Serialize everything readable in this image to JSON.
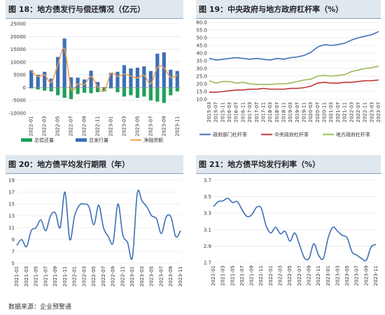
{
  "source": "数据来源：企业预警通",
  "charts": [
    {
      "type": "bar",
      "title": "图 18：地方债发行与偿还情况（亿元）",
      "y_ticks": [
        25000,
        20000,
        15000,
        10000,
        5000,
        0,
        -5000,
        -10000
      ],
      "ylim": [
        -10000,
        25000
      ],
      "x_ticks": [
        "2022-01",
        "2022-03",
        "2022-05",
        "2022-07",
        "2022-09",
        "2022-11",
        "2023-01",
        "2023-03",
        "2023-05",
        "2023-07",
        "2023-09",
        "2023-11"
      ],
      "categories": [
        "2022-01",
        "2022-02",
        "2022-03",
        "2022-04",
        "2022-05",
        "2022-06",
        "2022-07",
        "2022-08",
        "2022-09",
        "2022-10",
        "2022-11",
        "2022-12",
        "2023-01",
        "2023-02",
        "2023-03",
        "2023-04",
        "2023-05",
        "2023-06",
        "2023-07",
        "2023-08",
        "2023-09",
        "2023-10",
        "2023-11"
      ],
      "series": [
        {
          "name": "总偿还量",
          "color": "#22a05a",
          "values": [
            -300,
            -700,
            -1200,
            -1500,
            -3000,
            -4000,
            -4500,
            -2500,
            -2000,
            -2200,
            -1800,
            -1500,
            -300,
            -1800,
            -3500,
            -3000,
            -4000,
            -3500,
            -5000,
            -5500,
            -6000,
            -3000,
            -1500
          ]
        },
        {
          "name": "总发行量",
          "color": "#3d6fb5",
          "values": [
            6800,
            5000,
            6200,
            3500,
            12000,
            19200,
            4000,
            3900,
            3200,
            6600,
            2200,
            200,
            5800,
            6200,
            8800,
            7500,
            7800,
            8300,
            6500,
            13300,
            13800,
            7000,
            6500
          ]
        },
        {
          "name": "净融资额",
          "color": "#f0a050",
          "values": [
            6500,
            4300,
            5000,
            2000,
            9000,
            15200,
            -500,
            1400,
            1200,
            4400,
            400,
            -1300,
            5500,
            4400,
            5300,
            4500,
            3800,
            4800,
            1500,
            7800,
            7800,
            4000,
            5000
          ]
        }
      ]
    },
    {
      "type": "line",
      "title": "图 19：中央政府与地方政府杠杆率（%）",
      "y_ticks": [
        60.0,
        55.0,
        50.0,
        45.0,
        40.0,
        35.0,
        30.0,
        25.0,
        20.0,
        15.0,
        10.0
      ],
      "ylim": [
        10,
        60
      ],
      "x_ticks": [
        "2015-03",
        "2015-07",
        "2015-11",
        "2016-03",
        "2016-07",
        "2016-11",
        "2017-03",
        "2017-07",
        "2017-11",
        "2018-03",
        "2018-07",
        "2018-11",
        "2019-03",
        "2019-07",
        "2019-11",
        "2020-03",
        "2020-07",
        "2020-11",
        "2021-03",
        "2021-07",
        "2021-11",
        "2022-03",
        "2022-07",
        "2022-11",
        "2023-03",
        "2023-07"
      ],
      "series": [
        {
          "name": "政府部门杠杆率",
          "color": "#3d6fb5",
          "values": [
            36.5,
            35.5,
            36.0,
            36.5,
            37.0,
            36.5,
            36.0,
            36.5,
            36.0,
            35.5,
            36.5,
            36.0,
            37.0,
            37.5,
            38.5,
            40.5,
            44.0,
            45.5,
            45.0,
            45.5,
            46.5,
            48.5,
            50.0,
            51.0,
            52.0,
            54.0
          ]
        },
        {
          "name": "中央政府杠杆率",
          "color": "#c0393b",
          "values": [
            14.5,
            14.5,
            15.0,
            15.5,
            16.0,
            16.0,
            16.5,
            16.5,
            17.0,
            16.5,
            16.5,
            16.5,
            17.0,
            17.0,
            17.5,
            18.5,
            20.5,
            21.0,
            20.5,
            20.5,
            21.0,
            21.0,
            21.5,
            22.0,
            22.0,
            22.5
          ]
        },
        {
          "name": "地方政府杠杆率",
          "color": "#9bbb59",
          "values": [
            22.0,
            20.5,
            21.5,
            21.5,
            20.5,
            21.0,
            20.0,
            19.5,
            19.5,
            19.5,
            20.0,
            20.0,
            20.5,
            21.5,
            22.5,
            23.0,
            25.0,
            25.5,
            25.0,
            25.5,
            26.0,
            28.0,
            29.0,
            30.0,
            30.5,
            31.5
          ]
        }
      ]
    },
    {
      "type": "line",
      "title": "图 20：地方债平均发行期限（年）",
      "y_ticks": [
        19,
        17,
        15,
        13,
        11,
        9,
        7,
        5
      ],
      "ylim": [
        5,
        19
      ],
      "x_ticks": [
        "2021-01",
        "2021-03",
        "2021-05",
        "2021-07",
        "2021-09",
        "2021-11",
        "2022-01",
        "2022-03",
        "2022-05",
        "2022-07",
        "2022-09",
        "2022-11",
        "2023-01",
        "2023-03",
        "2023-05",
        "2023-07",
        "2023-09",
        "2023-11"
      ],
      "categories": [
        "2021-01",
        "2021-02",
        "2021-03",
        "2021-04",
        "2021-05",
        "2021-06",
        "2021-07",
        "2021-08",
        "2021-09",
        "2021-10",
        "2021-11",
        "2021-12",
        "2022-01",
        "2022-02",
        "2022-03",
        "2022-04",
        "2022-05",
        "2022-06",
        "2022-07",
        "2022-08",
        "2022-09",
        "2022-10",
        "2022-11",
        "2022-12",
        "2023-01",
        "2023-02",
        "2023-03",
        "2023-04",
        "2023-05",
        "2023-06",
        "2023-07",
        "2023-08",
        "2023-09",
        "2023-10",
        "2023-11"
      ],
      "series": [
        {
          "name": "地方债平均发行期限",
          "color": "#3d6fb5",
          "values": [
            8.0,
            9.0,
            7.8,
            10.5,
            11.0,
            12.3,
            10.5,
            13.0,
            13.5,
            11.0,
            17.0,
            9.0,
            13.0,
            14.8,
            15.0,
            14.5,
            11.5,
            14.8,
            11.0,
            9.5,
            8.5,
            15.0,
            9.8,
            8.5,
            6.0,
            16.8,
            15.5,
            14.5,
            13.0,
            12.5,
            10.0,
            12.8,
            12.8,
            9.5,
            10.5
          ]
        }
      ]
    },
    {
      "type": "line",
      "title": "图 21：地方债平均发行利率（%）",
      "y_ticks": [
        3.7,
        3.5,
        3.3,
        3.1,
        2.9,
        2.7
      ],
      "ylim": [
        2.7,
        3.7
      ],
      "x_ticks": [
        "2021-01",
        "2021-03",
        "2021-05",
        "2021-07",
        "2021-09",
        "2021-11",
        "2022-01",
        "2022-03",
        "2022-05",
        "2022-07",
        "2022-09",
        "2022-11",
        "2023-01",
        "2023-03",
        "2023-05",
        "2023-07",
        "2023-09",
        "2023-11"
      ],
      "categories": [
        "2021-01",
        "2021-02",
        "2021-03",
        "2021-04",
        "2021-05",
        "2021-06",
        "2021-07",
        "2021-08",
        "2021-09",
        "2021-10",
        "2021-11",
        "2021-12",
        "2022-01",
        "2022-02",
        "2022-03",
        "2022-04",
        "2022-05",
        "2022-06",
        "2022-07",
        "2022-08",
        "2022-09",
        "2022-10",
        "2022-11",
        "2022-12",
        "2023-01",
        "2023-02",
        "2023-03",
        "2023-04",
        "2023-05",
        "2023-06",
        "2023-07",
        "2023-08",
        "2023-09",
        "2023-10",
        "2023-11"
      ],
      "series": [
        {
          "name": "地方债平均发行利率",
          "color": "#3d6fb5",
          "values": [
            3.38,
            3.44,
            3.45,
            3.48,
            3.43,
            3.44,
            3.34,
            3.26,
            3.28,
            3.37,
            3.36,
            3.15,
            3.06,
            3.13,
            3.05,
            3.08,
            2.96,
            3.06,
            2.92,
            2.76,
            2.75,
            2.93,
            2.79,
            2.75,
            3.0,
            3.13,
            3.08,
            3.03,
            3.0,
            2.83,
            2.79,
            2.75,
            2.73,
            2.89,
            2.92
          ]
        }
      ]
    }
  ]
}
